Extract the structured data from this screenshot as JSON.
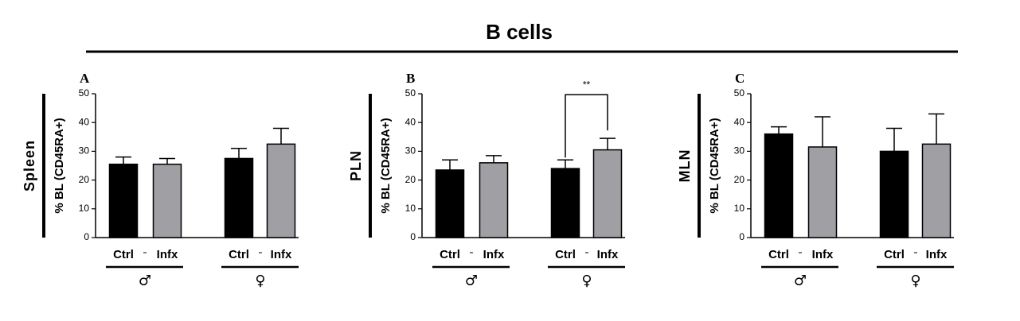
{
  "title": "B cells",
  "chart_data": [
    {
      "type": "bar",
      "panel": "A",
      "row_label": "Spleen",
      "ylabel": "% BL (CD45RA+)",
      "categories": [
        "Ctrl",
        "Infx",
        "Ctrl",
        "Infx"
      ],
      "groups": [
        "♂",
        "♀"
      ],
      "values": [
        25.5,
        25.5,
        27.5,
        32.5
      ],
      "errors": [
        2.5,
        2,
        3.5,
        5.5
      ],
      "colors": [
        "#000000",
        "#a0a0a4",
        "#000000",
        "#a0a0a4"
      ],
      "ylim": [
        0,
        50
      ],
      "yticks": [
        0,
        10,
        20,
        30,
        40,
        50
      ]
    },
    {
      "type": "bar",
      "panel": "B",
      "row_label": "PLN",
      "ylabel": "% BL (CD45RA+)",
      "categories": [
        "Ctrl",
        "Infx",
        "Ctrl",
        "Infx"
      ],
      "groups": [
        "♂",
        "♀"
      ],
      "values": [
        23.5,
        26,
        24,
        30.5
      ],
      "errors": [
        3.5,
        2.5,
        3,
        4
      ],
      "colors": [
        "#000000",
        "#a0a0a4",
        "#000000",
        "#a0a0a4"
      ],
      "ylim": [
        0,
        50
      ],
      "yticks": [
        0,
        10,
        20,
        30,
        40,
        50
      ],
      "significance": [
        {
          "label": "**",
          "from": 2,
          "to": 3
        }
      ]
    },
    {
      "type": "bar",
      "panel": "C",
      "row_label": "MLN",
      "ylabel": "% BL (CD45RA+)",
      "categories": [
        "Ctrl",
        "Infx",
        "Ctrl",
        "Infx"
      ],
      "groups": [
        "♂",
        "♀"
      ],
      "values": [
        36,
        31.5,
        30,
        32.5
      ],
      "errors": [
        2.5,
        10.5,
        8,
        10.5
      ],
      "colors": [
        "#000000",
        "#a0a0a4",
        "#000000",
        "#a0a0a4"
      ],
      "ylim": [
        0,
        50
      ],
      "yticks": [
        0,
        10,
        20,
        30,
        40,
        50
      ]
    }
  ]
}
